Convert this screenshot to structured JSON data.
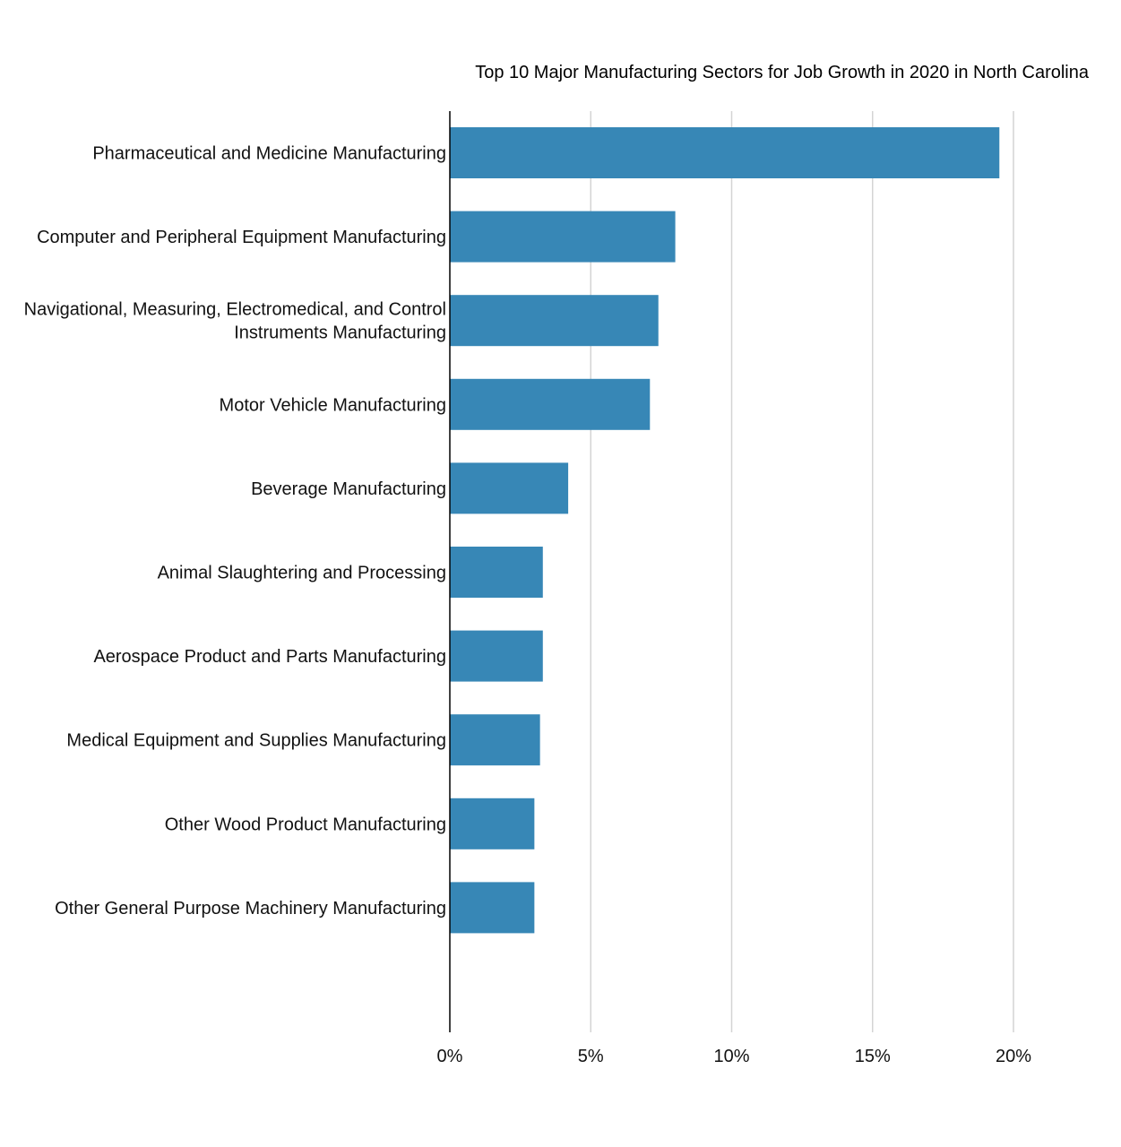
{
  "chart_data": {
    "type": "bar",
    "orientation": "horizontal",
    "title": "Top 10 Major Manufacturing Sectors for Job Growth in 2020 in North Carolina",
    "xlabel": "",
    "ylabel": "",
    "categories": [
      [
        "Pharmaceutical and Medicine Manufacturing"
      ],
      [
        "Computer and Peripheral Equipment Manufacturing"
      ],
      [
        "Navigational, Measuring, Electromedical, and Control",
        "Instruments Manufacturing"
      ],
      [
        "Motor Vehicle Manufacturing"
      ],
      [
        "Beverage Manufacturing"
      ],
      [
        "Animal Slaughtering and Processing"
      ],
      [
        "Aerospace Product and Parts Manufacturing"
      ],
      [
        "Medical Equipment and Supplies Manufacturing"
      ],
      [
        "Other Wood Product Manufacturing"
      ],
      [
        "Other General Purpose Machinery Manufacturing"
      ]
    ],
    "values": [
      19.5,
      8.0,
      7.4,
      7.1,
      4.2,
      3.3,
      3.3,
      3.2,
      3.0,
      3.0
    ],
    "xlim": [
      0,
      20
    ],
    "x_ticks": [
      0,
      5,
      10,
      15,
      20
    ],
    "x_tick_labels": [
      "0%",
      "5%",
      "10%",
      "15%",
      "20%"
    ],
    "grid": "vertical",
    "legend": "none",
    "colors": {
      "bar": "#3787b6",
      "grid": "#d4d4d4",
      "axis": "#000000"
    }
  }
}
